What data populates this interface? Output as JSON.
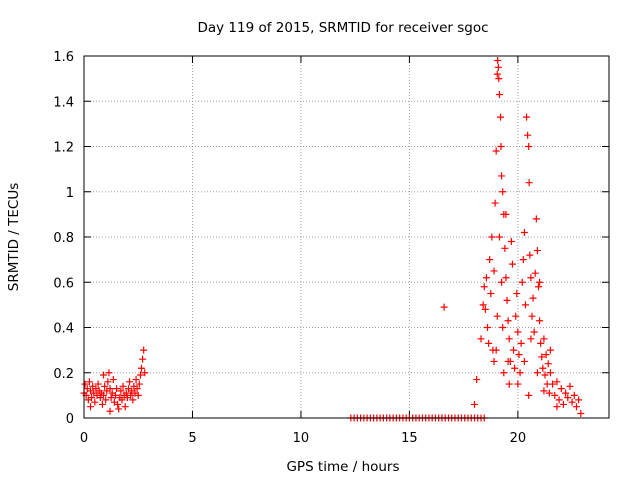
{
  "chart_data": {
    "type": "scatter",
    "title": "Day 119 of 2015, SRMTID for receiver sgoc",
    "xlabel": "GPS time / hours",
    "ylabel": "SRMTID / TECUs",
    "xlim": [
      0,
      24.2
    ],
    "ylim": [
      0,
      1.6
    ],
    "xticks": [
      0,
      5,
      10,
      15,
      20
    ],
    "xtick_labels": [
      "0",
      "5",
      "10",
      "15",
      "20"
    ],
    "yticks": [
      0,
      0.2,
      0.4,
      0.6,
      0.8,
      1.0,
      1.2,
      1.4,
      1.6
    ],
    "ytick_labels": [
      "0",
      "0.2",
      "0.4",
      "0.6",
      "0.8",
      "1",
      "1.2",
      "1.4",
      "1.6"
    ],
    "grid": true,
    "marker": "+",
    "marker_color": "#ff0000",
    "series": [
      {
        "name": "SRMTID",
        "points": [
          [
            0.0,
            0.11
          ],
          [
            0.05,
            0.15
          ],
          [
            0.1,
            0.1
          ],
          [
            0.15,
            0.13
          ],
          [
            0.2,
            0.08
          ],
          [
            0.25,
            0.16
          ],
          [
            0.3,
            0.12
          ],
          [
            0.35,
            0.09
          ],
          [
            0.4,
            0.14
          ],
          [
            0.45,
            0.11
          ],
          [
            0.5,
            0.07
          ],
          [
            0.55,
            0.13
          ],
          [
            0.6,
            0.1
          ],
          [
            0.65,
            0.15
          ],
          [
            0.7,
            0.12
          ],
          [
            0.75,
            0.09
          ],
          [
            0.8,
            0.11
          ],
          [
            0.85,
            0.06
          ],
          [
            0.9,
            0.1
          ],
          [
            0.95,
            0.14
          ],
          [
            1.0,
            0.08
          ],
          [
            1.05,
            0.12
          ],
          [
            1.1,
            0.16
          ],
          [
            1.15,
            0.2
          ],
          [
            1.2,
            0.13
          ],
          [
            1.25,
            0.09
          ],
          [
            1.3,
            0.11
          ],
          [
            1.35,
            0.17
          ],
          [
            1.4,
            0.07
          ],
          [
            1.45,
            0.1
          ],
          [
            1.5,
            0.13
          ],
          [
            1.55,
            0.06
          ],
          [
            1.6,
            0.04
          ],
          [
            1.65,
            0.09
          ],
          [
            1.7,
            0.12
          ],
          [
            1.75,
            0.08
          ],
          [
            1.8,
            0.14
          ],
          [
            1.85,
            0.1
          ],
          [
            1.9,
            0.05
          ],
          [
            1.95,
            0.11
          ],
          [
            2.0,
            0.09
          ],
          [
            2.05,
            0.13
          ],
          [
            2.1,
            0.16
          ],
          [
            2.15,
            0.1
          ],
          [
            2.2,
            0.12
          ],
          [
            2.25,
            0.08
          ],
          [
            2.3,
            0.14
          ],
          [
            2.35,
            0.11
          ],
          [
            2.4,
            0.17
          ],
          [
            2.45,
            0.13
          ],
          [
            2.5,
            0.1
          ],
          [
            2.55,
            0.15
          ],
          [
            2.6,
            0.19
          ],
          [
            2.65,
            0.22
          ],
          [
            2.7,
            0.26
          ],
          [
            2.75,
            0.3
          ],
          [
            2.8,
            0.2
          ],
          [
            0.3,
            0.05
          ],
          [
            0.9,
            0.19
          ],
          [
            1.2,
            0.03
          ],
          [
            12.3,
            0.0
          ],
          [
            12.45,
            0.0
          ],
          [
            12.6,
            0.0
          ],
          [
            12.75,
            0.0
          ],
          [
            12.9,
            0.0
          ],
          [
            13.05,
            0.0
          ],
          [
            13.2,
            0.0
          ],
          [
            13.35,
            0.0
          ],
          [
            13.5,
            0.0
          ],
          [
            13.65,
            0.0
          ],
          [
            13.8,
            0.0
          ],
          [
            13.95,
            0.0
          ],
          [
            14.1,
            0.0
          ],
          [
            14.25,
            0.0
          ],
          [
            14.4,
            0.0
          ],
          [
            14.55,
            0.0
          ],
          [
            14.7,
            0.0
          ],
          [
            14.85,
            0.0
          ],
          [
            15.0,
            0.0
          ],
          [
            15.15,
            0.0
          ],
          [
            15.3,
            0.0
          ],
          [
            15.45,
            0.0
          ],
          [
            15.6,
            0.0
          ],
          [
            15.75,
            0.0
          ],
          [
            15.9,
            0.0
          ],
          [
            16.05,
            0.0
          ],
          [
            16.2,
            0.0
          ],
          [
            16.35,
            0.0
          ],
          [
            16.5,
            0.0
          ],
          [
            16.65,
            0.0
          ],
          [
            16.8,
            0.0
          ],
          [
            16.95,
            0.0
          ],
          [
            17.1,
            0.0
          ],
          [
            17.25,
            0.0
          ],
          [
            17.4,
            0.0
          ],
          [
            17.55,
            0.0
          ],
          [
            17.7,
            0.0
          ],
          [
            17.85,
            0.0
          ],
          [
            18.0,
            0.0
          ],
          [
            18.15,
            0.0
          ],
          [
            18.3,
            0.0
          ],
          [
            18.45,
            0.0
          ],
          [
            16.6,
            0.49
          ],
          [
            18.0,
            0.06
          ],
          [
            18.1,
            0.17
          ],
          [
            18.3,
            0.35
          ],
          [
            18.4,
            0.5
          ],
          [
            18.45,
            0.58
          ],
          [
            18.5,
            0.48
          ],
          [
            18.55,
            0.62
          ],
          [
            18.6,
            0.4
          ],
          [
            18.65,
            0.33
          ],
          [
            18.7,
            0.7
          ],
          [
            18.75,
            0.55
          ],
          [
            18.8,
            0.8
          ],
          [
            18.85,
            0.3
          ],
          [
            18.9,
            0.65
          ],
          [
            18.95,
            0.95
          ],
          [
            19.0,
            1.18
          ],
          [
            19.05,
            1.52
          ],
          [
            19.07,
            1.58
          ],
          [
            19.1,
            1.55
          ],
          [
            19.12,
            1.5
          ],
          [
            19.15,
            1.43
          ],
          [
            19.2,
            1.33
          ],
          [
            19.22,
            1.2
          ],
          [
            19.25,
            1.07
          ],
          [
            19.3,
            1.0
          ],
          [
            19.35,
            0.9
          ],
          [
            19.4,
            0.75
          ],
          [
            19.45,
            0.62
          ],
          [
            19.5,
            0.52
          ],
          [
            19.55,
            0.43
          ],
          [
            19.6,
            0.35
          ],
          [
            19.65,
            0.25
          ],
          [
            19.7,
            0.78
          ],
          [
            19.75,
            0.68
          ],
          [
            19.8,
            0.3
          ],
          [
            19.85,
            0.22
          ],
          [
            19.9,
            0.45
          ],
          [
            19.95,
            0.55
          ],
          [
            20.0,
            0.38
          ],
          [
            20.05,
            0.28
          ],
          [
            20.1,
            0.2
          ],
          [
            20.15,
            0.33
          ],
          [
            20.2,
            0.6
          ],
          [
            20.25,
            0.7
          ],
          [
            20.3,
            0.82
          ],
          [
            20.35,
            0.5
          ],
          [
            20.4,
            1.33
          ],
          [
            20.45,
            1.25
          ],
          [
            20.5,
            1.2
          ],
          [
            20.52,
            1.04
          ],
          [
            20.55,
            0.72
          ],
          [
            20.6,
            0.62
          ],
          [
            20.65,
            0.45
          ],
          [
            20.7,
            0.53
          ],
          [
            20.75,
            0.38
          ],
          [
            20.8,
            0.64
          ],
          [
            20.85,
            0.88
          ],
          [
            20.9,
            0.74
          ],
          [
            20.95,
            0.58
          ],
          [
            21.0,
            0.43
          ],
          [
            21.05,
            0.33
          ],
          [
            21.1,
            0.27
          ],
          [
            21.15,
            0.22
          ],
          [
            21.2,
            0.35
          ],
          [
            21.25,
            0.19
          ],
          [
            21.3,
            0.28
          ],
          [
            21.35,
            0.15
          ],
          [
            21.4,
            0.24
          ],
          [
            21.45,
            0.11
          ],
          [
            21.5,
            0.2
          ],
          [
            21.6,
            0.15
          ],
          [
            21.7,
            0.1
          ],
          [
            21.8,
            0.16
          ],
          [
            21.9,
            0.08
          ],
          [
            22.0,
            0.13
          ],
          [
            22.1,
            0.06
          ],
          [
            22.2,
            0.11
          ],
          [
            22.3,
            0.09
          ],
          [
            22.4,
            0.14
          ],
          [
            22.5,
            0.07
          ],
          [
            22.6,
            0.1
          ],
          [
            22.7,
            0.05
          ],
          [
            22.8,
            0.08
          ],
          [
            22.9,
            0.02
          ],
          [
            19.05,
            0.45
          ],
          [
            19.15,
            0.8
          ],
          [
            19.25,
            0.6
          ],
          [
            19.35,
            0.2
          ],
          [
            19.45,
            0.9
          ],
          [
            19.55,
            0.25
          ],
          [
            19.0,
            0.3
          ],
          [
            19.3,
            0.4
          ],
          [
            20.0,
            0.15
          ],
          [
            20.3,
            0.25
          ],
          [
            20.6,
            0.35
          ],
          [
            20.9,
            0.2
          ],
          [
            21.0,
            0.6
          ],
          [
            21.2,
            0.12
          ],
          [
            18.9,
            0.25
          ],
          [
            19.6,
            0.15
          ],
          [
            20.5,
            0.1
          ],
          [
            21.5,
            0.3
          ],
          [
            21.8,
            0.05
          ]
        ]
      }
    ]
  }
}
